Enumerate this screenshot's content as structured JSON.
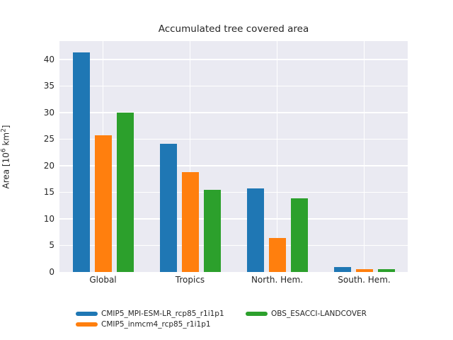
{
  "chart_data": {
    "type": "bar",
    "title": "Accumulated tree covered area",
    "ylabel": "Area [10^6 km^2]",
    "ylabel_parts": {
      "pre": "Area [10",
      "sup1": "6",
      "mid": " km",
      "sup2": "2",
      "post": "]"
    },
    "xlabel": "",
    "categories": [
      "Global",
      "Tropics",
      "North. Hem.",
      "South. Hem."
    ],
    "series": [
      {
        "name": "CMIP5_MPI-ESM-LR_rcp85_r1i1p1",
        "color": "#1f77b4",
        "values": [
          41.3,
          24.1,
          15.7,
          1.0
        ]
      },
      {
        "name": "CMIP5_inmcm4_rcp85_r1i1p1",
        "color": "#ff7f0e",
        "values": [
          25.7,
          18.8,
          6.4,
          0.5
        ]
      },
      {
        "name": "OBS_ESACCI-LANDCOVER",
        "color": "#2ca02c",
        "values": [
          30.0,
          15.4,
          13.9,
          0.6
        ]
      }
    ],
    "yticks": [
      0,
      5,
      10,
      15,
      20,
      25,
      30,
      35,
      40
    ],
    "ylim": [
      0,
      43.45
    ],
    "grid": true,
    "plot_bg_color": "#eaeaf2",
    "gridline_color": "#ffffff",
    "text_color": "#262626",
    "legend_position": "bottom"
  }
}
